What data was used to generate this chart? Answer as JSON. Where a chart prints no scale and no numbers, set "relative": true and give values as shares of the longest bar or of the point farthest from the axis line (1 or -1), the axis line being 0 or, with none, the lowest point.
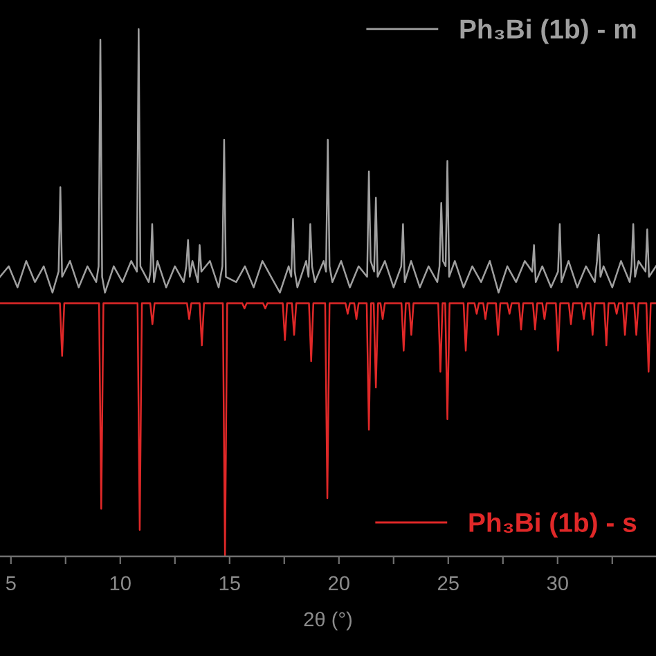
{
  "chart_data": {
    "type": "line",
    "relative": true,
    "xlabel": "2θ (°)",
    "xlim": [
      4.5,
      34.5
    ],
    "xticks": [
      5,
      {
        "value": 7.5,
        "label": null
      },
      10,
      {
        "value": 12.5,
        "label": null
      },
      15,
      {
        "value": 17.5,
        "label": null
      },
      20,
      {
        "value": 22.5,
        "label": null
      },
      25,
      {
        "value": 27.5,
        "label": null
      },
      30,
      {
        "value": 32.5,
        "label": null
      }
    ],
    "legend": "right",
    "series": [
      {
        "name": "Ph₃Bi (1b) - m",
        "color": "#a0a0a0",
        "x": [
          4.5,
          4.9,
          5.3,
          5.7,
          6.1,
          6.5,
          6.9,
          7.18,
          7.26,
          7.34,
          7.7,
          8.1,
          8.5,
          8.9,
          9.01,
          9.09,
          9.17,
          9.3,
          9.7,
          10.1,
          10.5,
          10.76,
          10.84,
          10.92,
          11.3,
          11.38,
          11.46,
          11.54,
          11.7,
          12.1,
          12.5,
          12.9,
          13.02,
          13.1,
          13.18,
          13.3,
          13.55,
          13.63,
          13.71,
          14.1,
          14.5,
          14.67,
          14.75,
          14.83,
          15.3,
          15.7,
          16.1,
          16.5,
          16.9,
          17.3,
          17.7,
          17.82,
          17.9,
          17.98,
          18.1,
          18.5,
          18.61,
          18.69,
          18.77,
          18.9,
          19.3,
          19.41,
          19.49,
          19.57,
          19.7,
          20.1,
          20.5,
          20.9,
          21.29,
          21.37,
          21.45,
          21.61,
          21.69,
          21.77,
          22.1,
          22.5,
          22.85,
          22.93,
          23.01,
          23.3,
          23.7,
          24.1,
          24.5,
          24.6,
          24.68,
          24.76,
          24.88,
          24.96,
          25.04,
          25.3,
          25.7,
          26.1,
          26.5,
          26.9,
          27.3,
          27.7,
          28.1,
          28.5,
          28.84,
          28.92,
          29.0,
          29.3,
          29.7,
          30.02,
          30.1,
          30.18,
          30.5,
          30.9,
          31.3,
          31.7,
          31.8,
          31.88,
          31.96,
          32.1,
          32.5,
          32.9,
          33.3,
          33.38,
          33.46,
          33.54,
          33.7,
          34.02,
          34.1,
          34.18,
          34.5
        ],
        "values": [
          0.53,
          0.55,
          0.51,
          0.56,
          0.52,
          0.55,
          0.5,
          0.54,
          0.7,
          0.53,
          0.56,
          0.51,
          0.55,
          0.52,
          0.55,
          0.98,
          0.53,
          0.5,
          0.55,
          0.52,
          0.56,
          0.54,
          1.0,
          0.55,
          0.52,
          0.54,
          0.63,
          0.52,
          0.56,
          0.51,
          0.55,
          0.52,
          0.55,
          0.6,
          0.53,
          0.56,
          0.52,
          0.59,
          0.54,
          0.56,
          0.51,
          0.55,
          0.79,
          0.53,
          0.52,
          0.55,
          0.51,
          0.56,
          0.53,
          0.5,
          0.55,
          0.53,
          0.64,
          0.54,
          0.51,
          0.56,
          0.53,
          0.63,
          0.55,
          0.52,
          0.56,
          0.54,
          0.79,
          0.55,
          0.52,
          0.56,
          0.51,
          0.55,
          0.53,
          0.73,
          0.56,
          0.54,
          0.68,
          0.53,
          0.56,
          0.51,
          0.55,
          0.63,
          0.52,
          0.56,
          0.51,
          0.55,
          0.52,
          0.55,
          0.67,
          0.56,
          0.55,
          0.75,
          0.53,
          0.56,
          0.51,
          0.55,
          0.52,
          0.56,
          0.5,
          0.55,
          0.52,
          0.56,
          0.54,
          0.59,
          0.52,
          0.55,
          0.51,
          0.54,
          0.63,
          0.52,
          0.56,
          0.51,
          0.55,
          0.52,
          0.56,
          0.61,
          0.53,
          0.55,
          0.51,
          0.56,
          0.52,
          0.55,
          0.63,
          0.53,
          0.56,
          0.54,
          0.62,
          0.53,
          0.55
        ]
      },
      {
        "name": "Ph₃Bi (1b) - s",
        "color": "#e02828",
        "x": [
          4.5,
          7.24,
          7.34,
          7.44,
          9.03,
          9.13,
          9.23,
          10.79,
          10.89,
          10.99,
          11.37,
          11.47,
          11.57,
          13.05,
          13.15,
          13.25,
          13.63,
          13.73,
          13.83,
          14.69,
          14.79,
          14.89,
          15.58,
          15.68,
          15.78,
          16.53,
          16.63,
          16.73,
          17.43,
          17.53,
          17.63,
          17.85,
          17.95,
          18.05,
          18.63,
          18.73,
          18.83,
          19.37,
          19.47,
          19.57,
          20.3,
          20.4,
          20.5,
          20.7,
          20.8,
          20.9,
          21.27,
          21.37,
          21.47,
          21.59,
          21.69,
          21.79,
          21.9,
          22.0,
          22.1,
          22.86,
          22.96,
          23.06,
          23.21,
          23.31,
          23.41,
          24.54,
          24.64,
          24.74,
          24.86,
          24.96,
          25.06,
          25.7,
          25.8,
          25.9,
          26.2,
          26.3,
          26.4,
          26.6,
          26.7,
          26.8,
          27.18,
          27.28,
          27.38,
          27.7,
          27.8,
          27.9,
          28.23,
          28.33,
          28.43,
          28.87,
          28.97,
          29.07,
          29.3,
          29.4,
          29.5,
          29.92,
          30.02,
          30.12,
          30.51,
          30.61,
          30.71,
          31.1,
          31.2,
          31.3,
          31.5,
          31.6,
          31.7,
          32.13,
          32.23,
          32.33,
          32.6,
          32.7,
          32.8,
          32.98,
          33.08,
          33.18,
          33.5,
          33.6,
          33.7,
          34.06,
          34.16,
          34.26,
          34.5
        ],
        "values": [
          0.48,
          0.48,
          0.38,
          0.48,
          0.48,
          0.09,
          0.48,
          0.48,
          0.05,
          0.48,
          0.48,
          0.44,
          0.48,
          0.48,
          0.45,
          0.48,
          0.48,
          0.4,
          0.48,
          0.48,
          0.0,
          0.48,
          0.48,
          0.47,
          0.48,
          0.48,
          0.47,
          0.48,
          0.48,
          0.41,
          0.48,
          0.48,
          0.42,
          0.48,
          0.48,
          0.37,
          0.48,
          0.48,
          0.11,
          0.48,
          0.48,
          0.46,
          0.48,
          0.48,
          0.45,
          0.48,
          0.48,
          0.24,
          0.48,
          0.48,
          0.32,
          0.48,
          0.48,
          0.45,
          0.48,
          0.48,
          0.39,
          0.48,
          0.48,
          0.42,
          0.48,
          0.48,
          0.35,
          0.48,
          0.48,
          0.26,
          0.48,
          0.48,
          0.39,
          0.48,
          0.48,
          0.46,
          0.48,
          0.48,
          0.45,
          0.48,
          0.48,
          0.42,
          0.48,
          0.48,
          0.46,
          0.48,
          0.48,
          0.43,
          0.48,
          0.48,
          0.43,
          0.48,
          0.48,
          0.45,
          0.48,
          0.48,
          0.39,
          0.48,
          0.48,
          0.44,
          0.48,
          0.48,
          0.45,
          0.48,
          0.48,
          0.42,
          0.48,
          0.48,
          0.4,
          0.48,
          0.48,
          0.46,
          0.48,
          0.48,
          0.42,
          0.48,
          0.48,
          0.42,
          0.48,
          0.48,
          0.35,
          0.48,
          0.48
        ]
      }
    ]
  }
}
